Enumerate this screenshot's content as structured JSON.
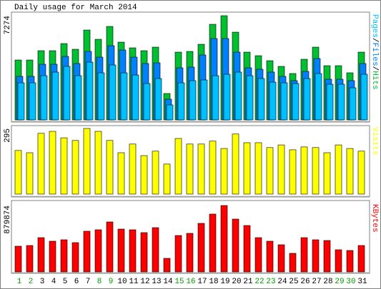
{
  "chart_data": [
    {
      "type": "bar",
      "title": "Daily usage for March 2014",
      "ylim": [
        0,
        7274
      ],
      "yticks": [
        7274
      ],
      "legend_separator": "/",
      "series": [
        {
          "name": "Pages",
          "color": "#00c0ff",
          "values": [
            2590,
            2590,
            3088,
            3337,
            3735,
            3088,
            4034,
            3287,
            3835,
            3287,
            3137,
            2540,
            2888,
            1046,
            2590,
            2739,
            2789,
            3088,
            3187,
            3337,
            3088,
            2888,
            2639,
            2590,
            2540,
            2888,
            3237,
            2490,
            2490,
            2241,
            3187
          ]
        },
        {
          "name": "Files",
          "color": "#0080ff",
          "values": [
            3038,
            3038,
            3884,
            3884,
            4432,
            3934,
            4781,
            4382,
            5179,
            4880,
            4382,
            3934,
            3984,
            1444,
            3635,
            3685,
            4532,
            5677,
            5677,
            4731,
            3635,
            3536,
            3337,
            3038,
            2739,
            3386,
            4283,
            2839,
            2839,
            2739,
            3934
          ]
        },
        {
          "name": "Hits",
          "color": "#00c030",
          "values": [
            4183,
            4183,
            4831,
            4831,
            5329,
            4930,
            6275,
            5627,
            6524,
            5428,
            5030,
            4831,
            5080,
            1843,
            4731,
            4781,
            5279,
            6673,
            7274,
            6125,
            4731,
            4482,
            4133,
            3735,
            3237,
            4233,
            5080,
            3785,
            3785,
            3287,
            4731
          ]
        }
      ]
    },
    {
      "type": "bar",
      "ylim": [
        0,
        295
      ],
      "yticks": [
        295
      ],
      "series": [
        {
          "name": "Visits",
          "color": "#ffff00",
          "values": [
            196,
            186,
            273,
            282,
            253,
            241,
            295,
            282,
            241,
            186,
            225,
            173,
            193,
            135,
            250,
            225,
            225,
            238,
            205,
            270,
            231,
            231,
            209,
            221,
            199,
            212,
            209,
            186,
            221,
            205,
            193
          ]
        }
      ]
    },
    {
      "type": "bar",
      "ylim": [
        0,
        879874
      ],
      "yticks": [
        879874
      ],
      "categories": [
        "1",
        "2",
        "3",
        "4",
        "5",
        "6",
        "7",
        "8",
        "9",
        "10",
        "11",
        "12",
        "13",
        "14",
        "15",
        "16",
        "17",
        "18",
        "19",
        "20",
        "21",
        "22",
        "23",
        "24",
        "25",
        "26",
        "27",
        "28",
        "29",
        "30",
        "31"
      ],
      "label_colors": [
        "#00a000",
        "#00a000",
        "#000000",
        "#000000",
        "#000000",
        "#000000",
        "#000000",
        "#00a000",
        "#00a000",
        "#000000",
        "#000000",
        "#000000",
        "#000000",
        "#000000",
        "#00a000",
        "#00a000",
        "#000000",
        "#000000",
        "#000000",
        "#000000",
        "#000000",
        "#00a000",
        "#00a000",
        "#000000",
        "#000000",
        "#000000",
        "#000000",
        "#000000",
        "#00a000",
        "#00a000",
        "#000000"
      ],
      "series": [
        {
          "name": "KBytes",
          "color": "#ff0000",
          "values": [
            340600,
            350000,
            454000,
            406800,
            425700,
            387900,
            539300,
            558200,
            662300,
            567700,
            558200,
            520400,
            586600,
            179800,
            482500,
            510900,
            643400,
            766400,
            879874,
            700100,
            615000,
            454000,
            406800,
            359500,
            246000,
            454000,
            425700,
            416300,
            293300,
            283800,
            350000
          ]
        }
      ]
    }
  ]
}
